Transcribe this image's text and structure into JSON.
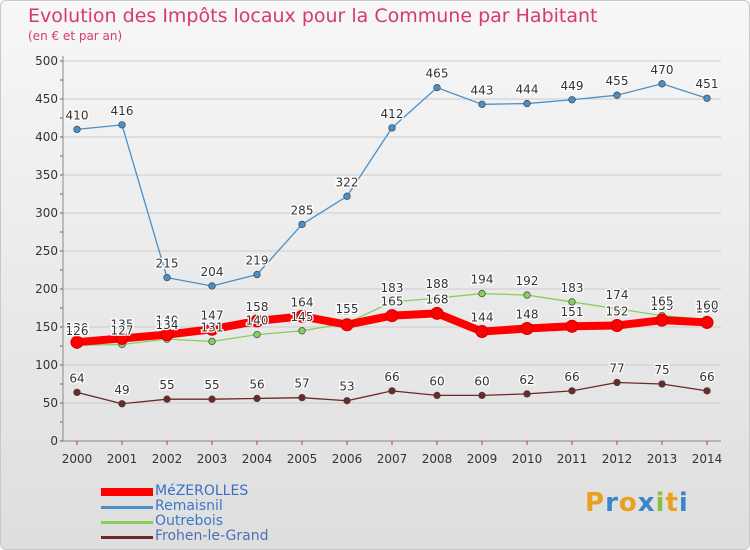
{
  "header": {
    "title": "Evolution des Impôts locaux pour la Commune par Habitant",
    "subtitle": "(en € et par an)"
  },
  "logo": {
    "text": "Proxiti"
  },
  "chart_data": {
    "type": "line",
    "title": "Evolution des Impôts locaux pour la Commune par Habitant",
    "subtitle": "(en € et par an)",
    "xlabel": "",
    "ylabel": "",
    "x": [
      "2000",
      "2001",
      "2002",
      "2003",
      "2004",
      "2005",
      "2006",
      "2007",
      "2008",
      "2009",
      "2010",
      "2011",
      "2012",
      "2013",
      "2014"
    ],
    "ylim": [
      0,
      500
    ],
    "yticks": [
      0,
      50,
      100,
      150,
      200,
      250,
      300,
      350,
      400,
      450,
      500
    ],
    "grid": "horizontal",
    "legend_position": "bottom-left",
    "series": [
      {
        "name": "MéZEROLLES",
        "color": "#ff0000",
        "values": [
          130,
          135,
          140,
          147,
          158,
          164,
          153,
          165,
          168,
          144,
          148,
          151,
          152,
          159,
          156
        ],
        "labels": [
          "130",
          "135",
          "140",
          "147",
          "158",
          "164",
          "153",
          "165",
          "168",
          "144",
          "148",
          "151",
          "152",
          "159",
          "156"
        ]
      },
      {
        "name": "Remaisnil",
        "color": "#4a90c8",
        "values": [
          410,
          416,
          215,
          204,
          219,
          285,
          322,
          412,
          465,
          443,
          444,
          449,
          455,
          470,
          451
        ],
        "labels": [
          "410",
          "416",
          "215",
          "204",
          "219",
          "285",
          "322",
          "412",
          "465",
          "443",
          "444",
          "449",
          "455",
          "470",
          "451"
        ]
      },
      {
        "name": "Outrebois",
        "color": "#88d05a",
        "values": [
          126,
          127,
          134,
          131,
          140,
          145,
          155,
          183,
          188,
          194,
          192,
          183,
          174,
          165,
          160
        ],
        "labels": [
          "126",
          "127",
          "134",
          "131",
          "140",
          "145",
          "155",
          "183",
          "188",
          "194",
          "192",
          "183",
          "174",
          "165",
          "160"
        ]
      },
      {
        "name": "Frohen-le-Grand",
        "color": "#6e2828",
        "values": [
          64,
          49,
          55,
          55,
          56,
          57,
          53,
          66,
          60,
          60,
          62,
          66,
          77,
          75,
          66
        ],
        "labels": [
          "64",
          "49",
          "55",
          "55",
          "56",
          "57",
          "53",
          "66",
          "60",
          "60",
          "62",
          "66",
          "77",
          "75",
          "66"
        ]
      }
    ]
  }
}
